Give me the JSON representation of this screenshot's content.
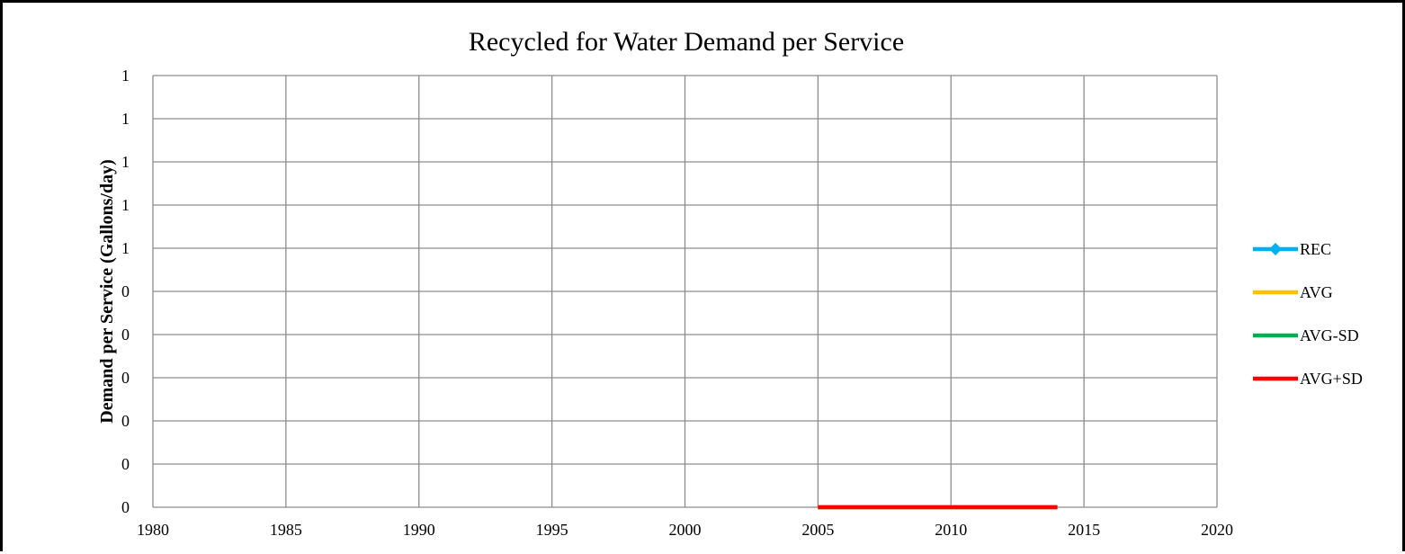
{
  "chart_data": {
    "type": "line",
    "title": "Recycled for Water Demand per Service",
    "xlabel": "",
    "ylabel": "Demand per Service (Gallons/day)",
    "xlim": [
      1980,
      2020
    ],
    "x_ticks": [
      1980,
      1985,
      1990,
      1995,
      2000,
      2005,
      2010,
      2015,
      2020
    ],
    "ylim": [
      0,
      1
    ],
    "y_tick_labels": [
      "0",
      "0",
      "0",
      "0",
      "0",
      "0",
      "1",
      "1",
      "1",
      "1",
      "1"
    ],
    "grid": true,
    "legend_position": "right",
    "series": [
      {
        "name": "REC",
        "color": "#00b0f0",
        "marker": "diamond",
        "x": [],
        "y": []
      },
      {
        "name": "AVG",
        "color": "#ffc000",
        "marker": "none",
        "x": [
          2005,
          2014
        ],
        "y": [
          0,
          0
        ]
      },
      {
        "name": "AVG-SD",
        "color": "#00b050",
        "marker": "none",
        "x": [
          2005,
          2014
        ],
        "y": [
          0,
          0
        ]
      },
      {
        "name": "AVG+SD",
        "color": "#ff0000",
        "marker": "none",
        "x": [
          2005,
          2014
        ],
        "y": [
          0,
          0
        ]
      }
    ]
  }
}
